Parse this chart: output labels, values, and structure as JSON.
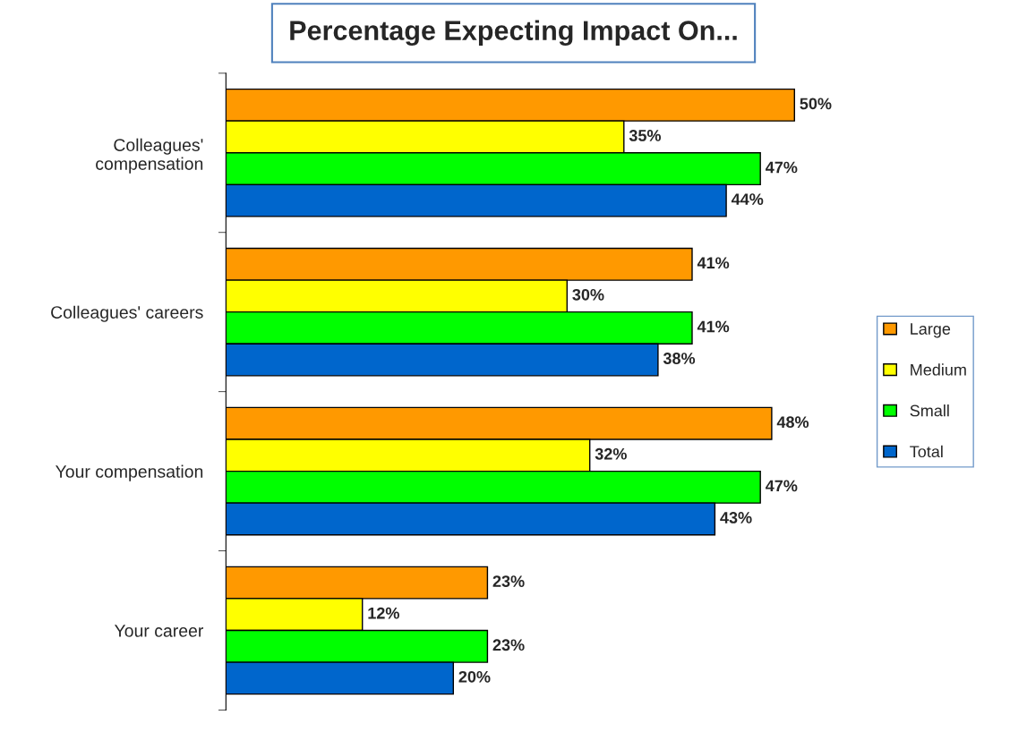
{
  "chart_data": {
    "type": "bar",
    "orientation": "horizontal",
    "title": "Percentage Expecting Impact On...",
    "categories": [
      "Colleagues'\ncompensation",
      "Colleagues' careers",
      "Your compensation",
      "Your career"
    ],
    "series": [
      {
        "name": "Large",
        "color": "#ff9900",
        "values": [
          50,
          41,
          48,
          23
        ],
        "value_labels": [
          "50%",
          "41%",
          "48%",
          "23%"
        ]
      },
      {
        "name": "Medium",
        "color": "#ffff00",
        "values": [
          35,
          30,
          32,
          12
        ],
        "value_labels": [
          "35%",
          "30%",
          "32%",
          "12%"
        ]
      },
      {
        "name": "Small",
        "color": "#00ff00",
        "values": [
          47,
          41,
          47,
          23
        ],
        "value_labels": [
          "47%",
          "41%",
          "47%",
          "23%"
        ]
      },
      {
        "name": "Total",
        "color": "#0066cc",
        "values": [
          44,
          38,
          43,
          20
        ],
        "value_labels": [
          "44%",
          "38%",
          "43%",
          "20%"
        ]
      }
    ],
    "legend": "right",
    "grid": false
  }
}
